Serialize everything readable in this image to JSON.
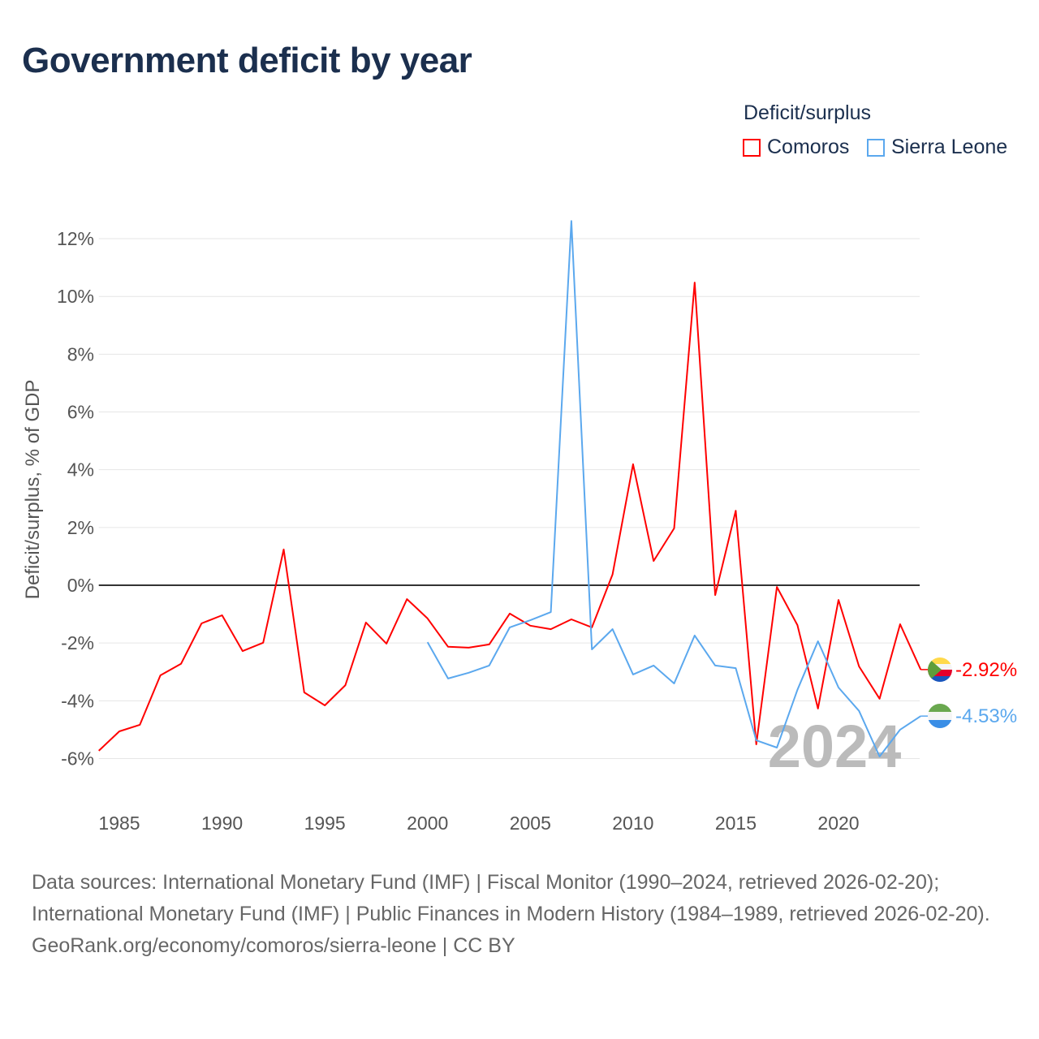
{
  "title": "Government deficit by year",
  "legend": {
    "title": "Deficit/surplus",
    "items": [
      {
        "label": "Comoros",
        "color": "#ff0000"
      },
      {
        "label": "Sierra Leone",
        "color": "#5ba8ee"
      }
    ]
  },
  "chart_data": {
    "type": "line",
    "title": "Government deficit by year",
    "xlabel": "",
    "ylabel": "Deficit/surplus, % of GDP",
    "xlim": [
      1984,
      2024
    ],
    "ylim": [
      -7.2,
      13
    ],
    "xticks": [
      1985,
      1990,
      1995,
      2000,
      2005,
      2010,
      2015,
      2020
    ],
    "yticks": [
      12,
      10,
      8,
      6,
      4,
      2,
      0,
      -2,
      -4,
      -6
    ],
    "ytick_labels": [
      "12%",
      "10%",
      "8%",
      "6%",
      "4%",
      "2%",
      "0%",
      "-2%",
      "-4%",
      "-6%"
    ],
    "grid": true,
    "legend_position": "top-right",
    "year_watermark": "2024",
    "series": [
      {
        "name": "Comoros",
        "color": "#ff0000",
        "end_label": "-2.92%",
        "start_year": 1984,
        "values": [
          -5.73,
          -5.06,
          -4.83,
          -3.12,
          -2.72,
          -1.32,
          -1.04,
          -2.28,
          -1.99,
          1.24,
          -3.71,
          -4.16,
          -3.46,
          -1.29,
          -2.02,
          -0.48,
          -1.15,
          -2.13,
          -2.16,
          -2.05,
          -0.98,
          -1.4,
          -1.52,
          -1.18,
          -1.46,
          0.37,
          4.19,
          0.84,
          1.97,
          10.48,
          -0.34,
          2.58,
          -5.51,
          -0.06,
          -1.38,
          -4.27,
          -0.51,
          -2.81,
          -3.93,
          -1.35,
          -2.92
        ]
      },
      {
        "name": "Sierra Leone",
        "color": "#5ba8ee",
        "end_label": "-4.53%",
        "start_year": 2000,
        "values": [
          -1.97,
          -3.23,
          -3.03,
          -2.78,
          -1.46,
          -1.21,
          -0.93,
          12.61,
          -2.22,
          -1.52,
          -3.09,
          -2.78,
          -3.4,
          -1.74,
          -2.78,
          -2.87,
          -5.37,
          -5.62,
          -3.62,
          -1.94,
          -3.54,
          -4.35,
          -5.93,
          -5.0,
          -4.53
        ]
      }
    ]
  },
  "footer": {
    "sources": "Data sources: International Monetary Fund (IMF) | Fiscal Monitor (1990–2024, retrieved 2026-02-20); International Monetary Fund (IMF) | Public Finances in Modern History (1984–1989, retrieved 2026-02-20).",
    "credit": "GeoRank.org/economy/comoros/sierra-leone | CC BY"
  }
}
